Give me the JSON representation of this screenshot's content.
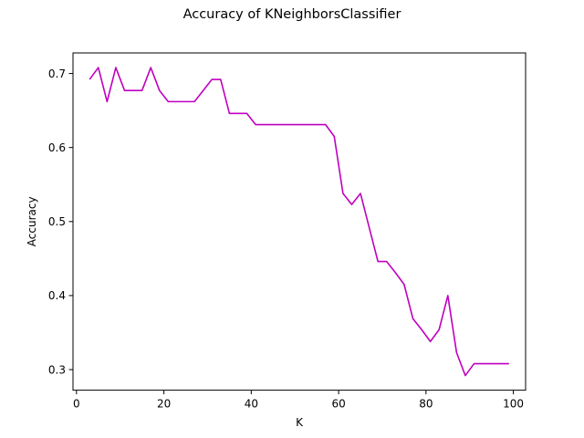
{
  "chart_data": {
    "type": "line",
    "title": "Accuracy of KNeighborsClassifier",
    "xlabel": "K",
    "ylabel": "Accuracy",
    "xlim": [
      -0.8,
      102.8
    ],
    "ylim": [
      0.2722,
      0.7278
    ],
    "xticks": [
      0,
      20,
      40,
      60,
      80,
      100
    ],
    "yticks": [
      0.3,
      0.4,
      0.5,
      0.6,
      0.7
    ],
    "grid": false,
    "color": "#bf00bf",
    "series": [
      {
        "x": [
          3,
          5,
          7,
          9,
          11,
          13,
          15,
          17,
          19,
          21,
          23,
          25,
          27,
          29,
          31,
          33,
          35,
          37,
          39,
          41,
          43,
          45,
          47,
          49,
          51,
          53,
          55,
          57,
          59,
          61,
          63,
          65,
          67,
          69,
          71,
          73,
          75,
          77,
          79,
          81,
          83,
          85,
          87,
          89,
          91,
          93,
          95,
          97,
          99
        ],
        "values": [
          0.692,
          0.708,
          0.662,
          0.708,
          0.677,
          0.677,
          0.677,
          0.708,
          0.677,
          0.662,
          0.662,
          0.662,
          0.662,
          0.677,
          0.692,
          0.692,
          0.646,
          0.646,
          0.646,
          0.631,
          0.631,
          0.631,
          0.631,
          0.631,
          0.631,
          0.631,
          0.631,
          0.631,
          0.615,
          0.538,
          0.523,
          0.538,
          0.492,
          0.446,
          0.446,
          0.431,
          0.415,
          0.369,
          0.354,
          0.338,
          0.354,
          0.4,
          0.323,
          0.292,
          0.308,
          0.308,
          0.308,
          0.308,
          0.308
        ]
      }
    ]
  }
}
